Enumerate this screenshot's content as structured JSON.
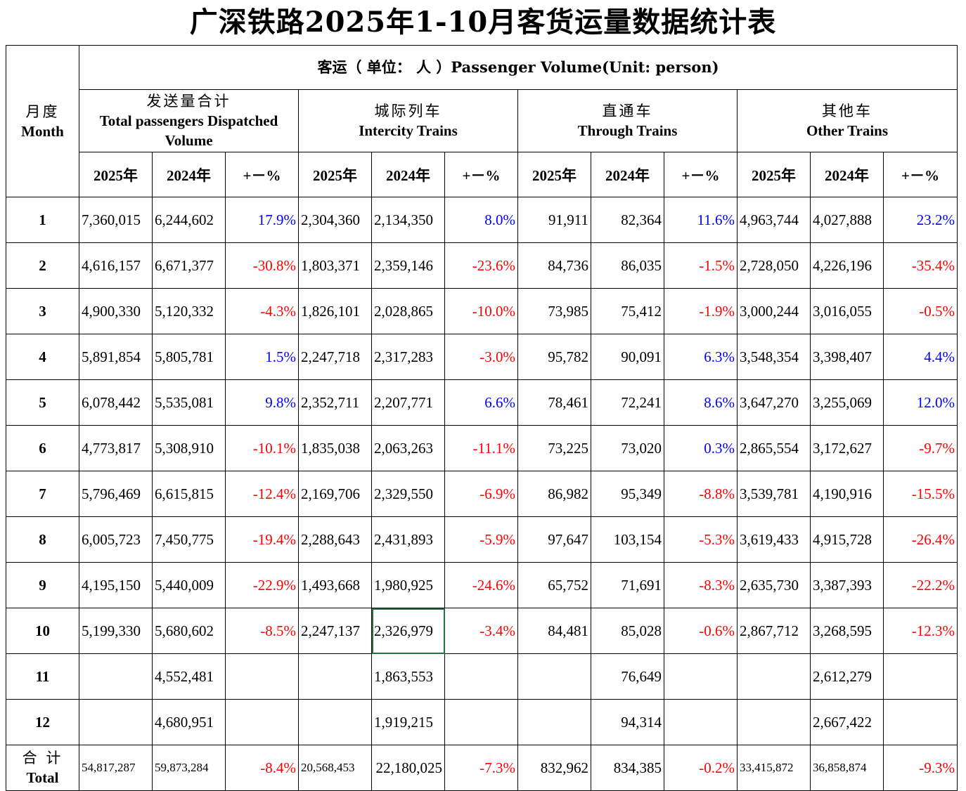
{
  "title": "广深铁路2025年1-10月客货运量数据统计表",
  "header": {
    "month_zh": "月度",
    "month_en": "Month",
    "passenger": "客运（ 单位： 人 ）Passenger Volume(Unit:   person)",
    "groups": [
      {
        "zh": "发送量合计",
        "en": "Total passengers Dispatched Volume"
      },
      {
        "zh": "城际列车",
        "en": "Intercity Trains"
      },
      {
        "zh": "直通车",
        "en": "Through Trains"
      },
      {
        "zh": "其他车",
        "en": "Other Trains"
      }
    ],
    "sub": [
      "2025年",
      "2024年",
      "+－%"
    ]
  },
  "rows": [
    {
      "m": "1",
      "c": [
        "7,360,015",
        "6,244,602",
        "17.9%",
        "2,304,360",
        "2,134,350",
        "8.0%",
        "91,911",
        "82,364",
        "11.6%",
        "4,963,744",
        "4,027,888",
        "23.2%"
      ]
    },
    {
      "m": "2",
      "c": [
        "4,616,157",
        "6,671,377",
        "-30.8%",
        "1,803,371",
        "2,359,146",
        "-23.6%",
        "84,736",
        "86,035",
        "-1.5%",
        "2,728,050",
        "4,226,196",
        "-35.4%"
      ]
    },
    {
      "m": "3",
      "c": [
        "4,900,330",
        "5,120,332",
        "-4.3%",
        "1,826,101",
        "2,028,865",
        "-10.0%",
        "73,985",
        "75,412",
        "-1.9%",
        "3,000,244",
        "3,016,055",
        "-0.5%"
      ]
    },
    {
      "m": "4",
      "c": [
        "5,891,854",
        "5,805,781",
        "1.5%",
        "2,247,718",
        "2,317,283",
        "-3.0%",
        "95,782",
        "90,091",
        "6.3%",
        "3,548,354",
        "3,398,407",
        "4.4%"
      ]
    },
    {
      "m": "5",
      "c": [
        "6,078,442",
        "5,535,081",
        "9.8%",
        "2,352,711",
        "2,207,771",
        "6.6%",
        "78,461",
        "72,241",
        "8.6%",
        "3,647,270",
        "3,255,069",
        "12.0%"
      ]
    },
    {
      "m": "6",
      "c": [
        "4,773,817",
        "5,308,910",
        "-10.1%",
        "1,835,038",
        "2,063,263",
        "-11.1%",
        "73,225",
        "73,020",
        "0.3%",
        "2,865,554",
        "3,172,627",
        "-9.7%"
      ]
    },
    {
      "m": "7",
      "c": [
        "5,796,469",
        "6,615,815",
        "-12.4%",
        "2,169,706",
        "2,329,550",
        "-6.9%",
        "86,982",
        "95,349",
        "-8.8%",
        "3,539,781",
        "4,190,916",
        "-15.5%"
      ]
    },
    {
      "m": "8",
      "c": [
        "6,005,723",
        "7,450,775",
        "-19.4%",
        "2,288,643",
        "2,431,893",
        "-5.9%",
        "97,647",
        "103,154",
        "-5.3%",
        "3,619,433",
        "4,915,728",
        "-26.4%"
      ]
    },
    {
      "m": "9",
      "c": [
        "4,195,150",
        "5,440,009",
        "-22.9%",
        "1,493,668",
        "1,980,925",
        "-24.6%",
        "65,752",
        "71,691",
        "-8.3%",
        "2,635,730",
        "3,387,393",
        "-22.2%"
      ]
    },
    {
      "m": "10",
      "c": [
        "5,199,330",
        "5,680,602",
        "-8.5%",
        "2,247,137",
        "2,326,979",
        "-3.4%",
        "84,481",
        "85,028",
        "-0.6%",
        "2,867,712",
        "3,268,595",
        "-12.3%"
      ]
    },
    {
      "m": "11",
      "c": [
        "",
        "4,552,481",
        "",
        "",
        "1,863,553",
        "",
        "",
        "76,649",
        "",
        "",
        "2,612,279",
        ""
      ]
    },
    {
      "m": "12",
      "c": [
        "",
        "4,680,951",
        "",
        "",
        "1,919,215",
        "",
        "",
        "94,314",
        "",
        "",
        "2,667,422",
        ""
      ]
    }
  ],
  "total": {
    "zh": "合 计",
    "en": "Total",
    "c": [
      "54,817,287",
      "59,873,284",
      "-8.4%",
      "20,568,453",
      "22,180,025",
      "-7.3%",
      "832,962",
      "834,385",
      "-0.2%",
      "33,415,872",
      "36,858,874",
      "-9.3%"
    ]
  },
  "colors": {
    "positive": "#0000ff",
    "negative": "#ff0000",
    "selection": "#217346"
  }
}
